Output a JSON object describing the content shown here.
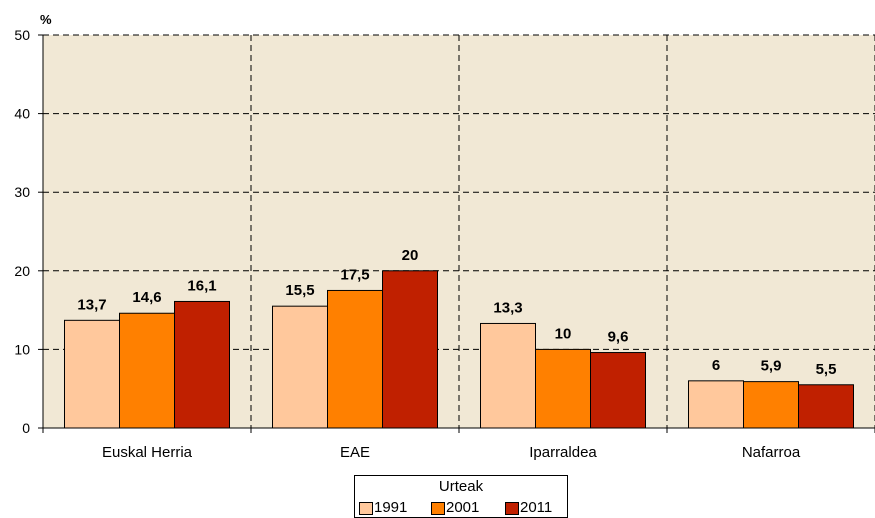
{
  "chart_data": {
    "type": "bar",
    "unit_label": "%",
    "categories": [
      "Euskal Herria",
      "EAE",
      "Iparraldea",
      "Nafarroa"
    ],
    "series": [
      {
        "name": "1991",
        "values": [
          13.7,
          15.5,
          13.3,
          6
        ],
        "labels": [
          "13,7",
          "15,5",
          "13,3",
          "6"
        ],
        "color": "#FFC89C"
      },
      {
        "name": "2001",
        "values": [
          14.6,
          17.5,
          10,
          5.9
        ],
        "labels": [
          "14,6",
          "17,5",
          "10",
          "5,9"
        ],
        "color": "#FF8000"
      },
      {
        "name": "2011",
        "values": [
          16.1,
          20,
          9.6,
          5.5
        ],
        "labels": [
          "16,1",
          "20",
          "9,6",
          "5,5"
        ],
        "color": "#C02000"
      }
    ],
    "ylim": [
      0,
      50
    ],
    "yticks": [
      "0",
      "10",
      "20",
      "30",
      "40",
      "50"
    ],
    "grid": true,
    "plot_background": "#F1E8D5",
    "legend": {
      "title": "Urteak",
      "position": "bottom-center"
    }
  }
}
